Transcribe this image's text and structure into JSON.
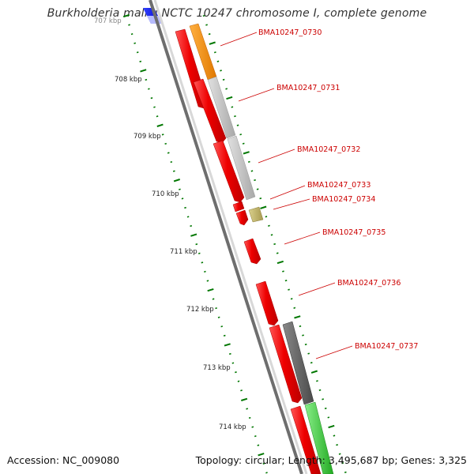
{
  "title": "Burkholderia mallei NCTC 10247 chromosome I, complete genome",
  "footer": {
    "accession": "Accession: NC_009080",
    "summary": "Topology: circular; Length: 3,495,687 bp; Genes: 3,325"
  },
  "ticks": [
    {
      "label": "707 kbp",
      "faded": true
    },
    {
      "label": "708 kbp"
    },
    {
      "label": "709 kbp"
    },
    {
      "label": "710 kbp"
    },
    {
      "label": "711 kbp"
    },
    {
      "label": "712 kbp"
    },
    {
      "label": "713 kbp"
    },
    {
      "label": "714 kbp"
    }
  ],
  "genes": [
    {
      "name": "BMA10247_0730",
      "strand_color": "#ee1111",
      "cog_color": "#ff8c00"
    },
    {
      "name": "BMA10247_0731",
      "strand_color": "#ee1111",
      "cog_color": "#c0c0c0"
    },
    {
      "name": "BMA10247_0732",
      "strand_color": "#ee1111",
      "cog_color": "#c0c0c0"
    },
    {
      "name": "BMA10247_0733",
      "strand_color": "#ee1111",
      "cog_color": "#c2b56e"
    },
    {
      "name": "BMA10247_0734",
      "strand_color": "#ee1111",
      "cog_color": ""
    },
    {
      "name": "BMA10247_0735",
      "strand_color": "#ee1111",
      "cog_color": ""
    },
    {
      "name": "BMA10247_0736",
      "strand_color": "#ee1111",
      "cog_color": ""
    },
    {
      "name": "BMA10247_0737",
      "strand_color": "#ee1111",
      "cog_color": "#666666"
    },
    {
      "name": "",
      "strand_color": "#ee1111",
      "cog_color": "#33cc33"
    }
  ],
  "colors": {
    "backbone": "#8a8a8a",
    "tick": "#007700",
    "label": "#cc0000",
    "leader": "#cc0000"
  }
}
